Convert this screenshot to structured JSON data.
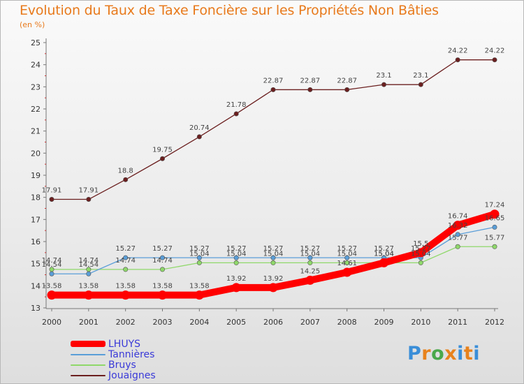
{
  "title": "Evolution du Taux de Taxe Foncière sur les Propriétés Non Bâties",
  "subtitle": "(en %)",
  "logo": {
    "text": "Proxiti",
    "letter_colors": [
      "#3a8ed8",
      "#e8821c",
      "#4aa84a",
      "#e8821c",
      "#3a8ed8",
      "#e8821c",
      "#3a8ed8"
    ]
  },
  "chart_data": {
    "type": "line",
    "title": "Evolution du Taux de Taxe Foncière sur les Propriétés Non Bâties",
    "ylabel": "(en %)",
    "x": [
      "2000",
      "2001",
      "2002",
      "2003",
      "2004",
      "2005",
      "2006",
      "2007",
      "2008",
      "2009",
      "2010",
      "2011",
      "2012"
    ],
    "ylim": [
      13,
      25
    ],
    "yticks": [
      "13",
      "14",
      "15",
      "16",
      "17",
      "18",
      "19",
      "20",
      "21",
      "22",
      "23",
      "24",
      "25"
    ],
    "grid": false,
    "legend_position": "bottom-left",
    "series": [
      {
        "name": "Jouaignes",
        "color": "#6b1f1f",
        "values": [
          17.91,
          17.91,
          18.8,
          19.75,
          20.74,
          21.78,
          22.87,
          22.87,
          22.87,
          23.1,
          23.1,
          24.22,
          24.22
        ],
        "labels": [
          "17.91",
          "17.91",
          "18.8",
          "19.75",
          "20.74",
          "21.78",
          "22.87",
          "22.87",
          "22.87",
          "23.1",
          "23.1",
          "24.22",
          "24.22"
        ]
      },
      {
        "name": "Bruys",
        "color": "#8fd86a",
        "values": [
          14.74,
          14.74,
          14.74,
          14.74,
          15.04,
          15.04,
          15.04,
          15.04,
          15.04,
          15.04,
          15.04,
          15.77,
          15.77
        ],
        "labels": [
          "14.74",
          "14.74",
          "14.74",
          "14.74",
          "15.04",
          "15.04",
          "15.04",
          "15.04",
          "15.04",
          "15.04",
          "15.04",
          "15.77",
          "15.77"
        ]
      },
      {
        "name": "Tannières",
        "color": "#5a9ed8",
        "values": [
          14.54,
          14.54,
          15.27,
          15.27,
          15.27,
          15.27,
          15.27,
          15.27,
          15.27,
          15.27,
          15.27,
          16.32,
          16.65
        ],
        "labels": [
          "14.54",
          "14.54",
          "15.27",
          "15.27",
          "15.27",
          "15.27",
          "15.27",
          "15.27",
          "15.27",
          "15.27",
          "15.27",
          "16.32",
          "16.65"
        ]
      },
      {
        "name": "LHUYS",
        "color": "#ff0000",
        "values": [
          13.58,
          13.58,
          13.58,
          13.58,
          13.58,
          13.92,
          13.92,
          14.25,
          14.61,
          15.04,
          15.5,
          16.74,
          17.24
        ],
        "labels": [
          "13.58",
          "13.58",
          "13.58",
          "13.58",
          "13.58",
          "13.92",
          "13.92",
          "14.25",
          "14.61",
          "15.04",
          "15.5",
          "16.74",
          "17.24"
        ]
      }
    ]
  },
  "legend": [
    {
      "label": "LHUYS",
      "color": "#ff0000",
      "thickness": 9
    },
    {
      "label": "Tannières",
      "color": "#5a9ed8",
      "thickness": 2
    },
    {
      "label": "Bruys",
      "color": "#8fd86a",
      "thickness": 2
    },
    {
      "label": "Jouaignes",
      "color": "#6b1f1f",
      "thickness": 2
    }
  ]
}
